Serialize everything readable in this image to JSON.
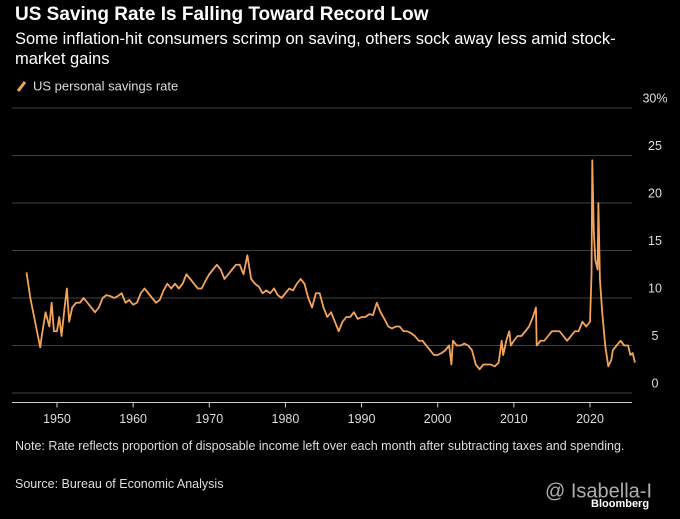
{
  "chart_data": {
    "type": "line",
    "title": "US Saving Rate Is Falling Toward Record Low",
    "subtitle": "Some inflation-hit consumers scrimp on saving, others sock away less amid stock-market gains",
    "note": "Note: Rate reflects proportion of disposable income left over each month after subtracting taxes and spending.",
    "source": "Source: Bureau of Economic Analysis",
    "brand": "Bloomberg",
    "watermark": "@ Isabella-I",
    "xlim": [
      1945,
      2026.5
    ],
    "xticks": [
      1950,
      1960,
      1970,
      1980,
      1990,
      2000,
      2010,
      2020
    ],
    "ylim": [
      -1,
      30
    ],
    "yticks": [
      0,
      5,
      10,
      15,
      20,
      25,
      {
        "value": 30,
        "label": "30%"
      }
    ],
    "grid": true,
    "series": [
      {
        "name": "US personal savings rate",
        "color": "#f4a35a",
        "x": [
          1946,
          1946.5,
          1947,
          1947.5,
          1947.8,
          1948,
          1948.5,
          1949,
          1949.3,
          1949.6,
          1950,
          1950.3,
          1950.6,
          1951,
          1951.3,
          1951.6,
          1952,
          1952.5,
          1953,
          1953.5,
          1954,
          1954.5,
          1955,
          1955.5,
          1956,
          1956.5,
          1957,
          1957.5,
          1958,
          1958.5,
          1959,
          1959.5,
          1960,
          1960.5,
          1961,
          1961.5,
          1962,
          1962.5,
          1963,
          1963.5,
          1964,
          1964.5,
          1965,
          1965.5,
          1966,
          1966.5,
          1967,
          1967.5,
          1968,
          1968.5,
          1969,
          1969.5,
          1970,
          1970.5,
          1971,
          1971.5,
          1972,
          1972.5,
          1973,
          1973.5,
          1974,
          1974.5,
          1975,
          1975.3,
          1975.5,
          1976,
          1976.5,
          1977,
          1977.5,
          1978,
          1978.5,
          1979,
          1979.5,
          1980,
          1980.5,
          1981,
          1981.5,
          1982,
          1982.5,
          1983,
          1983.5,
          1984,
          1984.5,
          1985,
          1985.5,
          1986,
          1986.5,
          1987,
          1987.5,
          1988,
          1988.5,
          1989,
          1989.5,
          1990,
          1990.5,
          1991,
          1991.5,
          1992,
          1992.5,
          1993,
          1993.5,
          1994,
          1994.5,
          1995,
          1995.5,
          1996,
          1996.5,
          1997,
          1997.5,
          1998,
          1998.5,
          1999,
          1999.5,
          2000,
          2000.5,
          2001,
          2001.5,
          2001.8,
          2002,
          2002.5,
          2003,
          2003.5,
          2004,
          2004.5,
          2005,
          2005.5,
          2006,
          2006.5,
          2007,
          2007.5,
          2008,
          2008.4,
          2008.6,
          2009,
          2009.4,
          2009.6,
          2010,
          2010.5,
          2011,
          2011.5,
          2012,
          2012.5,
          2012.9,
          2013,
          2013.5,
          2014,
          2014.5,
          2015,
          2015.5,
          2016,
          2016.5,
          2017,
          2017.5,
          2018,
          2018.5,
          2019,
          2019.5,
          2020,
          2020.2,
          2020.3,
          2020.5,
          2020.7,
          2021,
          2021.1,
          2021.3,
          2021.6,
          2022,
          2022.4,
          2022.8,
          2023,
          2023.5,
          2024,
          2024.5,
          2025,
          2025.3,
          2025.6,
          2025.9
        ],
        "values": [
          12.7,
          10,
          8,
          6,
          4.8,
          6,
          8.5,
          7,
          9.5,
          6.5,
          6.5,
          8,
          6,
          9,
          11,
          7.5,
          9,
          9.5,
          9.5,
          10,
          9.5,
          9,
          8.5,
          9,
          10,
          10.3,
          10.2,
          10,
          10.2,
          10.5,
          9.5,
          9.8,
          9.3,
          9.5,
          10.5,
          11,
          10.5,
          10,
          9.5,
          9.8,
          10.8,
          11.5,
          11,
          11.5,
          11,
          11.5,
          12.5,
          12,
          11.5,
          11,
          11,
          11.8,
          12.5,
          13,
          13.5,
          13,
          12,
          12.5,
          13,
          13.5,
          13.5,
          12.5,
          14.5,
          13,
          12,
          11.5,
          11.2,
          10.5,
          10.8,
          10.5,
          11,
          10.3,
          10,
          10.5,
          11,
          10.8,
          11.5,
          12,
          11.5,
          10,
          9,
          10.5,
          10.5,
          9,
          8,
          8.5,
          7.5,
          6.5,
          7.5,
          8,
          8,
          8.5,
          7.8,
          8,
          8,
          8.3,
          8.2,
          9.5,
          8.5,
          7.8,
          7,
          6.8,
          7,
          7,
          6.5,
          6.5,
          6.3,
          6,
          5.5,
          5.5,
          5,
          4.5,
          4,
          4,
          4.2,
          4.5,
          5,
          3,
          5.5,
          5,
          5,
          5.2,
          5,
          4.5,
          3,
          2.5,
          3,
          3,
          3,
          2.8,
          3.2,
          5.5,
          4,
          5.5,
          6.5,
          5,
          5.5,
          6,
          6,
          6.5,
          7,
          8,
          9,
          5,
          5.5,
          5.5,
          6,
          6.5,
          6.5,
          6.5,
          6,
          5.5,
          6,
          6.5,
          6.5,
          7.5,
          7,
          7.5,
          12.5,
          24.5,
          17,
          14,
          13,
          20,
          12,
          8.5,
          5,
          2.8,
          3.5,
          4.5,
          5,
          5.5,
          5,
          5,
          4,
          4.2,
          3.2
        ]
      }
    ]
  }
}
